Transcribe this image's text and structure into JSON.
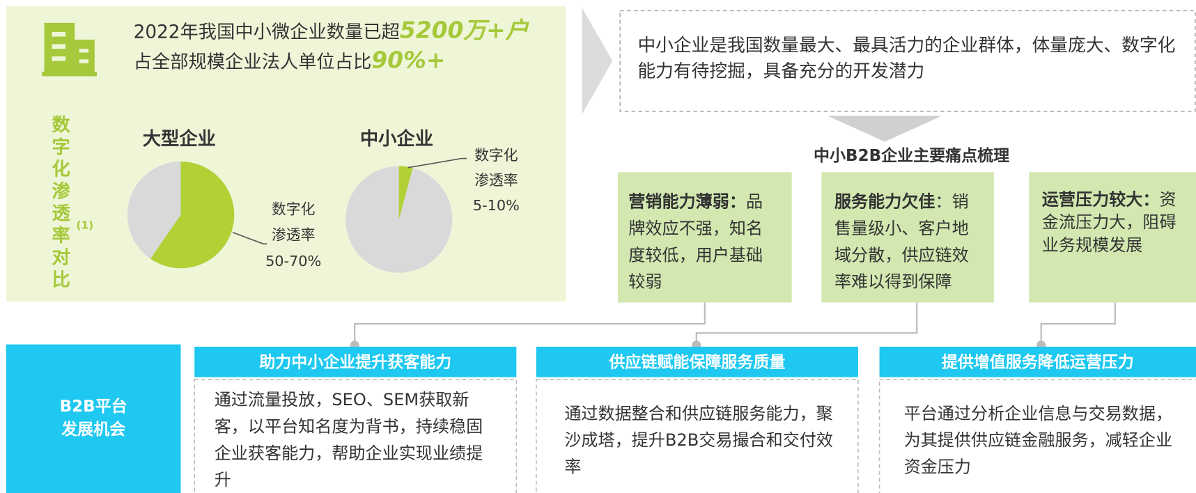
{
  "header": {
    "line1_text": "2022年我国中小微企业数量已超",
    "line1_highlight": "5200万+户",
    "line2_text": "占全部规模企业法人单位占比",
    "line2_highlight": "90%+"
  },
  "comparison": {
    "title": "数字化渗透率对比",
    "note": "(1)",
    "large": {
      "name": "大型企业",
      "label_lines": [
        "数字化",
        "渗透率",
        "50-70%"
      ]
    },
    "small": {
      "name": "中小企业",
      "label_lines": [
        "数字化",
        "渗透率",
        "5-10%"
      ]
    }
  },
  "summary": "中小企业是我国数量最大、最具活力的企业群体，体量庞大、数字化能力有待挖掘，具备充分的开发潜力",
  "pain_points": {
    "title": "中小B2B企业主要痛点梳理",
    "items": [
      {
        "title": "营销能力薄弱：",
        "text": "品牌效应不强，知名度较低，用户基础较弱"
      },
      {
        "title": "服务能力欠佳",
        "text": "：销售量级小、客户地域分散，供应链效率难以得到保障"
      },
      {
        "title": "运营压力较大：",
        "text": "资金流压力大，阻碍业务规模发展"
      }
    ]
  },
  "opportunities": {
    "title_lines": [
      "B2B平台",
      "发展机会"
    ],
    "items": [
      {
        "title": "助力中小企业提升获客能力",
        "text": "通过流量投放，SEO、SEM获取新客，以平台知名度为背书，持续稳固企业获客能力，帮助企业实现业绩提升"
      },
      {
        "title": "供应链赋能保障服务质量",
        "text": "通过数据整合和供应链服务能力，聚沙成塔，提升B2B交易撮合和交付效率"
      },
      {
        "title": "提供增值服务降低运营压力",
        "text": "平台通过分析企业信息与交易数据，为其提供供应链金融服务，减轻企业资金压力"
      }
    ]
  }
}
